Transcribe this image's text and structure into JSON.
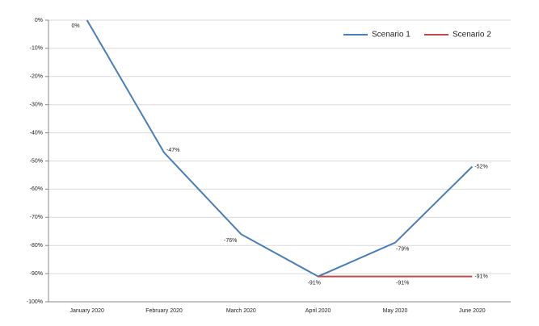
{
  "chart_data": {
    "type": "line",
    "categories": [
      "January 2020",
      "February 2020",
      "March 2020",
      "April 2020",
      "May 2020",
      "June 2020"
    ],
    "series": [
      {
        "name": "Scenario 1",
        "color": "#4a7ebb",
        "values": [
          0,
          -47,
          -76,
          -91,
          -79,
          -52
        ],
        "value_labels": [
          "0%",
          "-47%",
          "-76%",
          "-91%",
          "-79%",
          "-52%"
        ]
      },
      {
        "name": "Scenario 2",
        "color": "#be4b48",
        "values": [
          null,
          null,
          null,
          -91,
          -91,
          -91
        ],
        "value_labels": [
          null,
          null,
          null,
          null,
          "-91%",
          "-91%"
        ]
      }
    ],
    "ylim": [
      -100,
      0
    ],
    "yticks": [
      {
        "value": 0,
        "label": "0%"
      },
      {
        "value": -10,
        "label": "-10%"
      },
      {
        "value": -20,
        "label": "-20%"
      },
      {
        "value": -30,
        "label": "-30%"
      },
      {
        "value": -40,
        "label": "-40%"
      },
      {
        "value": -50,
        "label": "-50%"
      },
      {
        "value": -60,
        "label": "-60%"
      },
      {
        "value": -70,
        "label": "-70%"
      },
      {
        "value": -80,
        "label": "-80%"
      },
      {
        "value": -90,
        "label": "-90%"
      },
      {
        "value": -100,
        "label": "-100%"
      }
    ],
    "grid": true,
    "legend": "top-right"
  }
}
